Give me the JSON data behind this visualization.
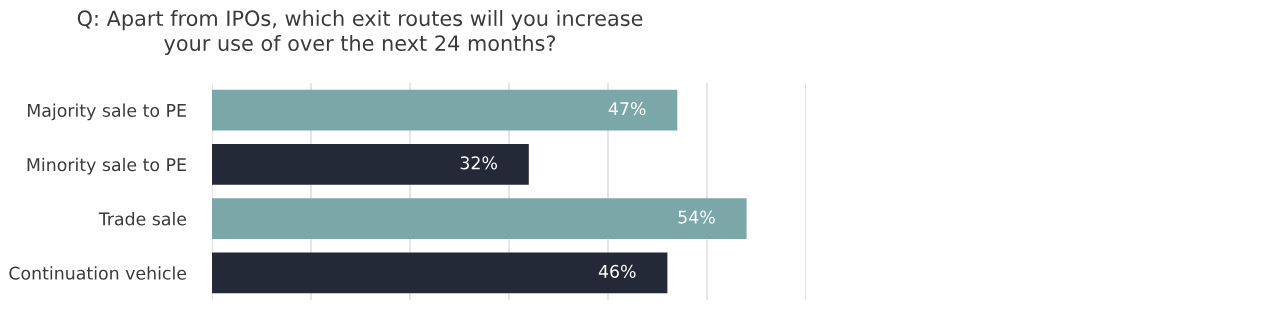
{
  "chart_data": {
    "type": "bar",
    "orientation": "horizontal",
    "title": "Q: Apart from IPOs, which exit routes will you increase\nyour use of over the next 24 months?",
    "categories": [
      "Majority sale to PE",
      "Minority sale to PE",
      "Trade sale",
      "Continuation vehicle"
    ],
    "values": [
      47,
      32,
      54,
      46
    ],
    "colors": [
      "#7ba7a9",
      "#232936",
      "#7ba7a9",
      "#232936"
    ],
    "value_labels": [
      "47%",
      "32%",
      "54%",
      "46%"
    ],
    "xlim": [
      0,
      60
    ],
    "xticks": [
      {
        "value": 0,
        "label": null
      },
      {
        "value": 10,
        "label": null
      },
      {
        "value": 20,
        "label": null
      },
      {
        "value": 30,
        "label": null
      },
      {
        "value": 40,
        "label": null
      },
      {
        "value": 50,
        "label": null
      },
      {
        "value": 60,
        "label": null
      }
    ],
    "grid": "x",
    "tick_labels": "y",
    "legend": false
  }
}
